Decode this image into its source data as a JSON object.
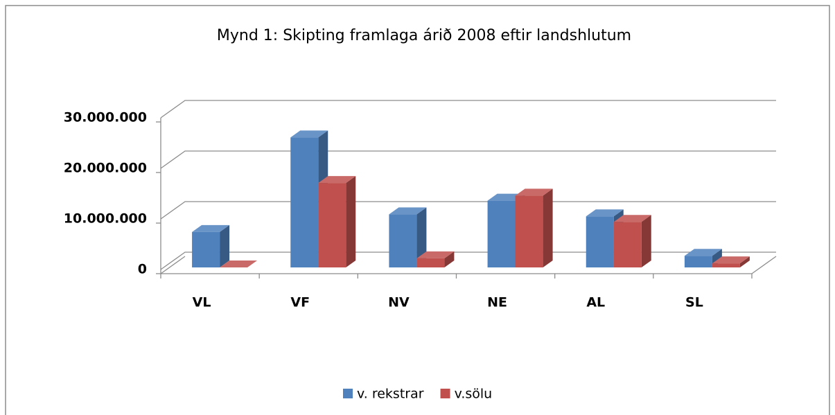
{
  "chart_data": {
    "type": "bar3d",
    "title": "Mynd 1: Skipting framlaga árið 2008 eftir landshlutum",
    "categories": [
      "VL",
      "VF",
      "NV",
      "NE",
      "AL",
      "SL"
    ],
    "series": [
      {
        "name": "v. rekstrar",
        "color": "#4f81bd",
        "values": [
          7000000,
          25700000,
          10500000,
          13200000,
          10100000,
          2300000
        ]
      },
      {
        "name": "v.sölu",
        "color": "#c0504d",
        "values": [
          0,
          16700000,
          1800000,
          14200000,
          9000000,
          800000
        ]
      }
    ],
    "ylim": [
      0,
      30000000
    ],
    "yticks": [
      0,
      {
        "value": 10000000,
        "label": "10.000.000"
      },
      {
        "value": 20000000,
        "label": "20.000.000"
      },
      {
        "value": 30000000,
        "label": "30.000.000"
      }
    ],
    "grid": true,
    "legend": "bottom"
  }
}
